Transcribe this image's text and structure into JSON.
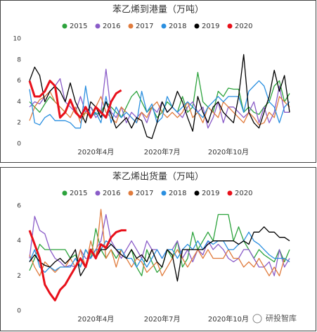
{
  "chart_data": [
    {
      "type": "line",
      "title": "苯乙烯到港量（万吨）",
      "categories": [
        null,
        null,
        null,
        null,
        null,
        null,
        null,
        null,
        null,
        null,
        null,
        null,
        null,
        "2020年4月",
        null,
        null,
        null,
        null,
        null,
        null,
        null,
        null,
        null,
        null,
        null,
        null,
        "2020年7月",
        null,
        null,
        null,
        null,
        null,
        null,
        null,
        null,
        null,
        null,
        null,
        null,
        "2020年10月",
        null,
        null,
        null,
        null,
        null,
        null,
        null,
        null,
        null,
        null,
        null,
        null
      ],
      "ylim": [
        0,
        10
      ],
      "yticks": [
        0,
        2,
        4,
        6,
        8,
        10
      ],
      "legend": "top",
      "series": [
        {
          "name": "2015",
          "color": "#2ca33c",
          "values": [
            4,
            3.5,
            3,
            3.8,
            4.5,
            4,
            3.5,
            3,
            4,
            3.2,
            2.5,
            3,
            3.5,
            2.8,
            3,
            4,
            3.5,
            3,
            2.5,
            3.5,
            4.5,
            5,
            4,
            3,
            3.5,
            2.5,
            3,
            4,
            3.5,
            3,
            4.5,
            3,
            3.5,
            6.8,
            4,
            3.5,
            3,
            5,
            4.5,
            5.3,
            5.2,
            5.2,
            3,
            3.5,
            3,
            2.8,
            3.5,
            4,
            5.5,
            6,
            4,
            4.8
          ]
        },
        {
          "name": "2016",
          "color": "#8a5cc8",
          "values": [
            3.5,
            4,
            3.8,
            4.5,
            5,
            5.5,
            6.2,
            4,
            3.5,
            3,
            4.5,
            3,
            3.5,
            2.5,
            3,
            7.1,
            3,
            2.5,
            3.5,
            2,
            3,
            2.5,
            3,
            2,
            3.5,
            3,
            4,
            3,
            3.5,
            3,
            2.5,
            3.5,
            4,
            3,
            3.5,
            1.5,
            2.5,
            4,
            2,
            3.5,
            3.5,
            3,
            2.5,
            3,
            4,
            2,
            3.5,
            2,
            3,
            5.5,
            3,
            3
          ]
        },
        {
          "name": "2017",
          "color": "#e07b3c",
          "values": [
            2.2,
            3.5,
            4.2,
            4.5,
            5,
            4,
            3.5,
            3,
            2.5,
            3.5,
            2,
            3,
            2.5,
            3.5,
            4.5,
            3,
            2.5,
            2,
            3.5,
            3,
            2.5,
            2,
            3,
            2.5,
            3.5,
            4,
            3,
            2.5,
            3,
            2.5,
            3,
            4,
            2.5,
            3,
            2,
            3.5,
            3,
            2.5,
            4,
            3.5,
            3,
            2.5,
            2,
            3,
            2.5,
            1.8,
            2,
            3,
            2.5,
            4.5,
            4,
            3.5
          ]
        },
        {
          "name": "2018",
          "color": "#2a8fe0",
          "values": [
            5.2,
            2,
            1.8,
            2.5,
            2.8,
            2.2,
            2.2,
            2.2,
            2,
            1.5,
            1.5,
            5.5,
            2.5,
            3,
            2,
            4.5,
            2,
            3.5,
            2.5,
            3,
            2.5,
            2,
            5,
            3,
            3.8,
            2,
            2.5,
            4.5,
            3.5,
            3,
            3.5,
            4,
            3.5,
            3,
            2.5,
            3.5,
            4,
            4.5,
            4,
            4.5,
            4.5,
            4.5,
            3,
            5,
            5.5,
            6,
            5.5,
            4,
            3.5,
            2,
            3.5,
            4
          ]
        },
        {
          "name": "2019",
          "color": "#000000",
          "values": [
            6,
            7.3,
            6.5,
            4,
            5,
            5.5,
            5,
            4,
            5.8,
            4,
            3,
            2,
            4,
            3.5,
            2.5,
            4,
            2.8,
            1.5,
            2,
            2.5,
            1.5,
            2.5,
            2.2,
            0.7,
            0.5,
            2,
            4,
            3,
            3.5,
            5,
            4,
            2.5,
            1.2,
            4.5,
            3,
            2,
            3.5,
            4,
            3,
            2.5,
            2,
            4.5,
            8.5,
            3,
            2,
            1.5,
            3,
            4.5,
            7,
            5,
            6.5,
            3
          ]
        },
        {
          "name": "2020",
          "color": "#e8101a",
          "values": [
            6,
            4.5,
            4.5,
            5,
            6,
            5.5,
            2.5,
            3,
            4.2,
            3,
            2.5,
            3.5,
            2.5,
            3.5,
            3,
            2.5,
            4,
            4.8,
            5.1,
            null,
            null,
            null,
            null,
            null,
            null,
            null,
            null,
            null,
            null,
            null,
            null,
            null,
            null,
            null,
            null,
            null,
            null,
            null,
            null,
            null,
            null,
            null,
            null,
            null,
            null,
            null,
            null,
            null,
            null,
            null,
            null,
            null
          ]
        }
      ]
    },
    {
      "type": "line",
      "title": "苯乙烯出货量（万吨）",
      "categories": [
        null,
        null,
        null,
        null,
        null,
        null,
        null,
        null,
        null,
        null,
        null,
        null,
        null,
        "2020年4月",
        null,
        null,
        null,
        null,
        null,
        null,
        null,
        null,
        null,
        null,
        null,
        null,
        "2020年7月",
        null,
        null,
        null,
        null,
        null,
        null,
        null,
        null,
        null,
        null,
        null,
        null,
        "2020年10月",
        null,
        null,
        null,
        null,
        null,
        null,
        null,
        null,
        null,
        null,
        null,
        null
      ],
      "ylim": [
        0,
        6
      ],
      "yticks": [
        0,
        2,
        4,
        6
      ],
      "legend": "top",
      "series": [
        {
          "name": "2015",
          "color": "#2ca33c",
          "values": [
            2.3,
            3,
            3.8,
            3.5,
            3.5,
            3.5,
            3.5,
            3.5,
            3,
            3.2,
            2.5,
            3.5,
            3,
            4.7,
            3.5,
            3,
            3.5,
            3,
            3.5,
            3,
            3.5,
            2.5,
            2,
            3.5,
            2.8,
            2.2,
            2.5,
            3.5,
            3,
            4,
            2.5,
            3,
            4.5,
            3.5,
            4,
            4.5,
            4,
            5.5,
            5.5,
            5.5,
            4,
            4.8,
            4,
            3.5,
            3,
            3.5,
            3.2,
            3,
            2.8,
            3.5,
            2.8,
            3.5
          ]
        },
        {
          "name": "2016",
          "color": "#8a5cc8",
          "values": [
            3,
            5.4,
            4.6,
            4.4,
            3.5,
            3,
            2.8,
            2.5,
            2.6,
            2.5,
            3.5,
            3,
            3,
            3.5,
            4,
            5.5,
            4,
            3.5,
            3,
            3.5,
            4,
            3.5,
            3,
            4,
            3.5,
            3.5,
            3,
            3.5,
            3.5,
            4,
            3,
            3.5,
            2.8,
            3.5,
            3.2,
            4,
            3.5,
            3.8,
            3.5,
            3,
            2.8,
            3,
            3.5,
            3.5,
            3,
            2.5,
            2.5,
            2.8,
            2,
            3.5,
            2.5,
            3
          ]
        },
        {
          "name": "2017",
          "color": "#e07b3c",
          "values": [
            3.2,
            2.5,
            2,
            2.8,
            2.5,
            2.2,
            2.5,
            2.5,
            3,
            2.5,
            3.5,
            2.5,
            4,
            3,
            5.8,
            3,
            3.5,
            2.5,
            3.5,
            3,
            2.5,
            3,
            2.8,
            2.2,
            2.5,
            2.8,
            2,
            2.5,
            3,
            3.5,
            3,
            2.5,
            3,
            3.5,
            3,
            3.5,
            3,
            3,
            3,
            3.5,
            3,
            3,
            2.5,
            2.8,
            2.5,
            3,
            2.5,
            2,
            2.5,
            2,
            3,
            2.8
          ]
        },
        {
          "name": "2018",
          "color": "#2a8fe0",
          "values": [
            2.8,
            3.5,
            2.5,
            2.2,
            2.5,
            2.3,
            2.5,
            2.5,
            2.5,
            3,
            2.5,
            3.5,
            3,
            3.5,
            3.5,
            4,
            3.8,
            3.5,
            3.5,
            3,
            3,
            2.5,
            3,
            2.5,
            3,
            3.5,
            3,
            3.5,
            3.5,
            3,
            3.5,
            3.8,
            3.5,
            4,
            3.5,
            4,
            3.8,
            4,
            4,
            3.5,
            3.5,
            3.8,
            4,
            4.5,
            4,
            3.8,
            3.5,
            3.2,
            3,
            3,
            3,
            2.8
          ]
        },
        {
          "name": "2019",
          "color": "#000000",
          "values": [
            2.8,
            3.2,
            2.8,
            2.6,
            2.5,
            2.8,
            3,
            2.7,
            3,
            3.5,
            2,
            2.5,
            3.5,
            3,
            3.5,
            3.5,
            3.8,
            3.5,
            3.2,
            3,
            3.5,
            3,
            3.2,
            2.8,
            3.5,
            2.8,
            2.5,
            3.5,
            3.2,
            1.7,
            3.5,
            3.5,
            3.5,
            3.5,
            3.5,
            3.8,
            4,
            4,
            4,
            4,
            4,
            3.8,
            4,
            3.8,
            4.5,
            4.5,
            4.8,
            4.5,
            4.5,
            4.2,
            4.2,
            4
          ]
        },
        {
          "name": "2020",
          "color": "#e8101a",
          "values": [
            4.6,
            3.8,
            3,
            1.5,
            1,
            0.6,
            1.2,
            1.5,
            2,
            2.5,
            3,
            2.5,
            3.5,
            3,
            3.8,
            3.6,
            4.2,
            4.5,
            4.6,
            4.6,
            null,
            null,
            null,
            null,
            null,
            null,
            null,
            null,
            null,
            null,
            null,
            null,
            null,
            null,
            null,
            null,
            null,
            null,
            null,
            null,
            null,
            null,
            null,
            null,
            null,
            null,
            null,
            null,
            null,
            null,
            null,
            null
          ]
        }
      ]
    }
  ],
  "watermark": "研投智库"
}
